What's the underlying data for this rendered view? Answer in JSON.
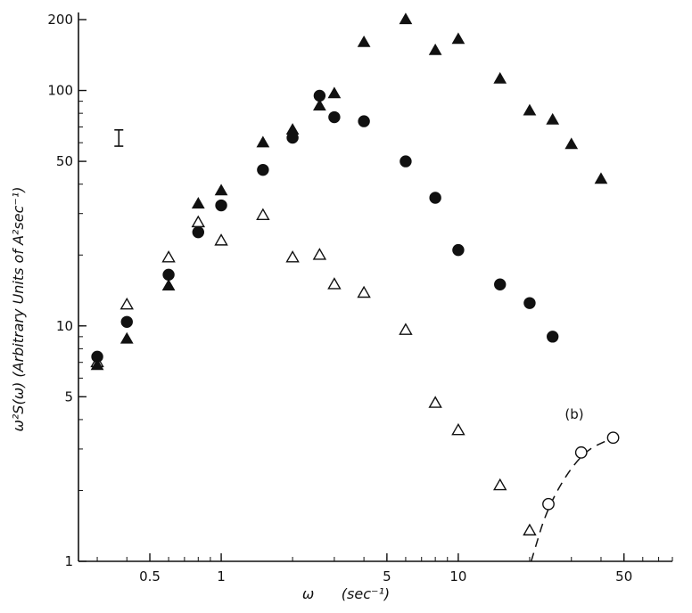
{
  "chart_data": {
    "type": "scatter",
    "title": "",
    "xlabel": "ω      (sec⁻¹)",
    "ylabel": "ω²S(ω)   (Arbitrary Units of A²sec⁻¹)",
    "xscale": "log",
    "yscale": "log",
    "xlim": [
      0.25,
      80
    ],
    "ylim": [
      1,
      200
    ],
    "xticks": [
      {
        "value": 0.5,
        "label": "0.5"
      },
      {
        "value": 1,
        "label": "1"
      },
      {
        "value": 5,
        "label": "5"
      },
      {
        "value": 10,
        "label": "10"
      },
      {
        "value": 50,
        "label": "50"
      }
    ],
    "yticks": [
      {
        "value": 1,
        "label": "1"
      },
      {
        "value": 5,
        "label": "5"
      },
      {
        "value": 10,
        "label": "10"
      },
      {
        "value": 50,
        "label": "50"
      },
      {
        "value": 100,
        "label": "100"
      },
      {
        "value": 200,
        "label": "200"
      }
    ],
    "grid": false,
    "annotation": "(b)",
    "error_bar": {
      "x": 0.37,
      "y_low": 58,
      "y_high": 68
    },
    "series": [
      {
        "marker": "filled-triangle",
        "points": [
          [
            0.3,
            6.8
          ],
          [
            0.4,
            8.8
          ],
          [
            0.6,
            14.8
          ],
          [
            0.8,
            33
          ],
          [
            1.0,
            37.5
          ],
          [
            1.5,
            60
          ],
          [
            2.0,
            68
          ],
          [
            2.6,
            86
          ],
          [
            3.0,
            97
          ],
          [
            4.0,
            160
          ],
          [
            6.0,
            200
          ],
          [
            8.0,
            148
          ],
          [
            10.0,
            165
          ],
          [
            15.0,
            112
          ],
          [
            20.0,
            82
          ],
          [
            25.0,
            75
          ],
          [
            30.0,
            59
          ],
          [
            40.0,
            42
          ]
        ]
      },
      {
        "marker": "filled-circle",
        "points": [
          [
            0.3,
            7.4
          ],
          [
            0.4,
            10.4
          ],
          [
            0.6,
            16.5
          ],
          [
            0.8,
            25
          ],
          [
            1.0,
            32.5
          ],
          [
            1.5,
            46
          ],
          [
            2.0,
            63
          ],
          [
            2.6,
            95
          ],
          [
            3.0,
            77
          ],
          [
            4.0,
            74
          ],
          [
            6.0,
            50
          ],
          [
            8.0,
            35
          ],
          [
            10.0,
            21
          ],
          [
            15.0,
            15
          ],
          [
            20.0,
            12.5
          ],
          [
            25.0,
            9
          ]
        ]
      },
      {
        "marker": "open-triangle",
        "points": [
          [
            0.3,
            7.0
          ],
          [
            0.4,
            12.3
          ],
          [
            0.6,
            19.5
          ],
          [
            0.8,
            27.5
          ],
          [
            1.0,
            23
          ],
          [
            1.5,
            29.5
          ],
          [
            2.0,
            19.5
          ],
          [
            2.6,
            20
          ],
          [
            3.0,
            15
          ],
          [
            4.0,
            13.8
          ],
          [
            6.0,
            9.6
          ],
          [
            8.0,
            4.7
          ],
          [
            10.0,
            3.6
          ],
          [
            15.0,
            2.1
          ],
          [
            20.0,
            1.35
          ]
        ]
      },
      {
        "marker": "open-circle",
        "line": "dashed",
        "points": [
          [
            24,
            1.75
          ],
          [
            33,
            2.9
          ],
          [
            45,
            3.35
          ]
        ],
        "dashed_curve": [
          [
            20.3,
            1.0
          ],
          [
            24,
            1.75
          ],
          [
            33,
            2.9
          ],
          [
            45,
            3.35
          ]
        ]
      }
    ]
  }
}
